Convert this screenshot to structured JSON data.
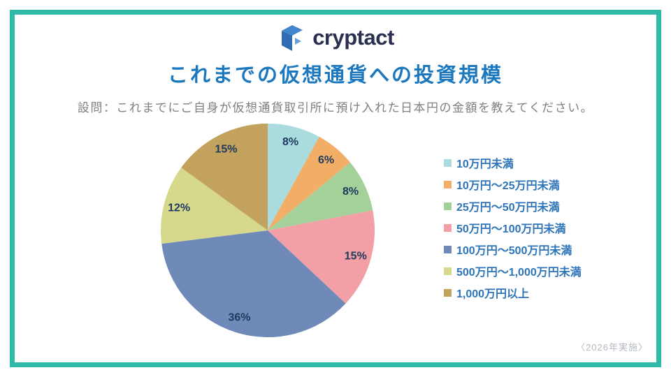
{
  "logo": {
    "brand": "cryptact",
    "icon": "cryptact-cube-icon"
  },
  "header": {
    "title": "これまでの仮想通貨への投資規模",
    "subtitle": "設問：これまでにご自身が仮想通貨取引所に預け入れた日本円の金額を教えてください。"
  },
  "footer": {
    "note": "〈2026年実施〉"
  },
  "colors": {
    "frame_border": "#2FB9A7",
    "title_text": "#1B78BE",
    "subtitle_text": "#7F7F7F",
    "legend_text": "#2D74B8",
    "slice_label_text": "#1E3A5F",
    "wordmark_text": "#2A3150",
    "footnote_text": "#B3BAC1"
  },
  "chart_data": {
    "type": "pie",
    "title": "これまでの仮想通貨への投資規模",
    "unit": "%",
    "start_angle_deg": 0,
    "direction": "clockwise",
    "legend_position": "right",
    "labels": [
      "10万円未満",
      "10万円〜25万円未満",
      "25万円〜50万円未満",
      "50万円〜100万円未満",
      "100万円〜500万円未満",
      "500万円〜1,000万円未満",
      "1,000万円以上"
    ],
    "values": [
      8,
      6,
      8,
      15,
      36,
      12,
      15
    ],
    "colors": [
      "#A9DBDF",
      "#F2AE67",
      "#A4D199",
      "#F2A0A5",
      "#6F8AB8",
      "#D6D98C",
      "#C2A25C"
    ]
  }
}
